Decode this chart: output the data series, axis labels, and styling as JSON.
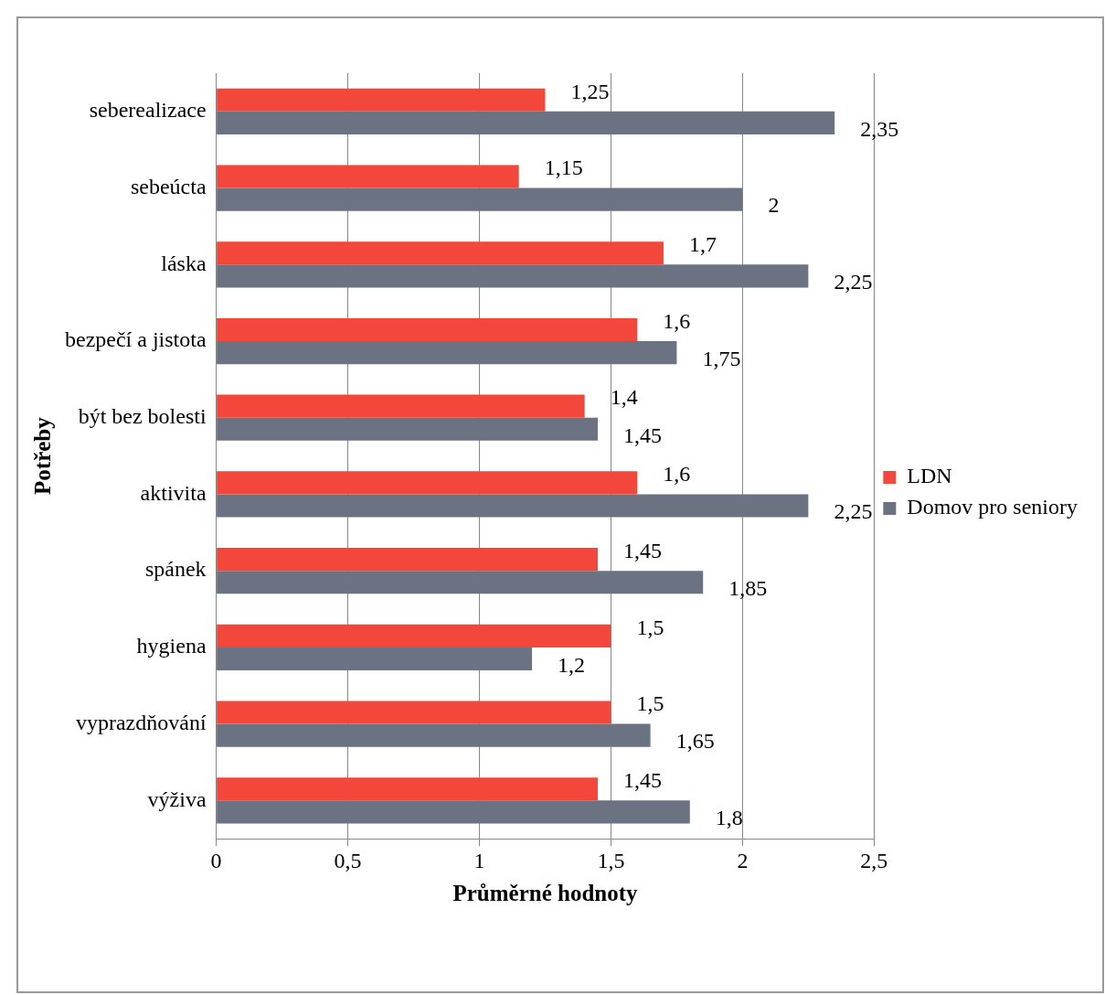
{
  "chart_data": {
    "type": "bar",
    "orientation": "horizontal",
    "xlabel": "Průměrné hodnoty",
    "ylabel": "Potřeby",
    "categories": [
      "seberealizace",
      "sebeúcta",
      "láska",
      "bezpečí a jistota",
      "být bez bolesti",
      "aktivita",
      "spánek",
      "hygiena",
      "vyprazdňování",
      "výživa"
    ],
    "series": [
      {
        "name": "LDN",
        "color": "#f2473a",
        "values": [
          1.25,
          1.15,
          1.7,
          1.6,
          1.4,
          1.6,
          1.45,
          1.5,
          1.5,
          1.45
        ],
        "value_labels": [
          "1,25",
          "1,15",
          "1,7",
          "1,6",
          "1,4",
          "1,6",
          "1,45",
          "1,5",
          "1,5",
          "1,45"
        ]
      },
      {
        "name": "Domov pro seniory",
        "color": "#6b7282",
        "values": [
          2.35,
          2,
          2.25,
          1.75,
          1.45,
          2.25,
          1.85,
          1.2,
          1.65,
          1.8
        ],
        "value_labels": [
          "2,35",
          "2",
          "2,25",
          "1,75",
          "1,45",
          "2,25",
          "1,85",
          "1,2",
          "1,65",
          "1,8"
        ]
      }
    ],
    "xlim": [
      0,
      2.5
    ],
    "xticks": [
      0,
      {
        "value": 0.5,
        "label": "0,5"
      },
      1,
      {
        "value": 1.5,
        "label": "1,5"
      },
      2,
      {
        "value": 2.5,
        "label": "2,5"
      }
    ],
    "grid": "x",
    "legend": "right"
  }
}
